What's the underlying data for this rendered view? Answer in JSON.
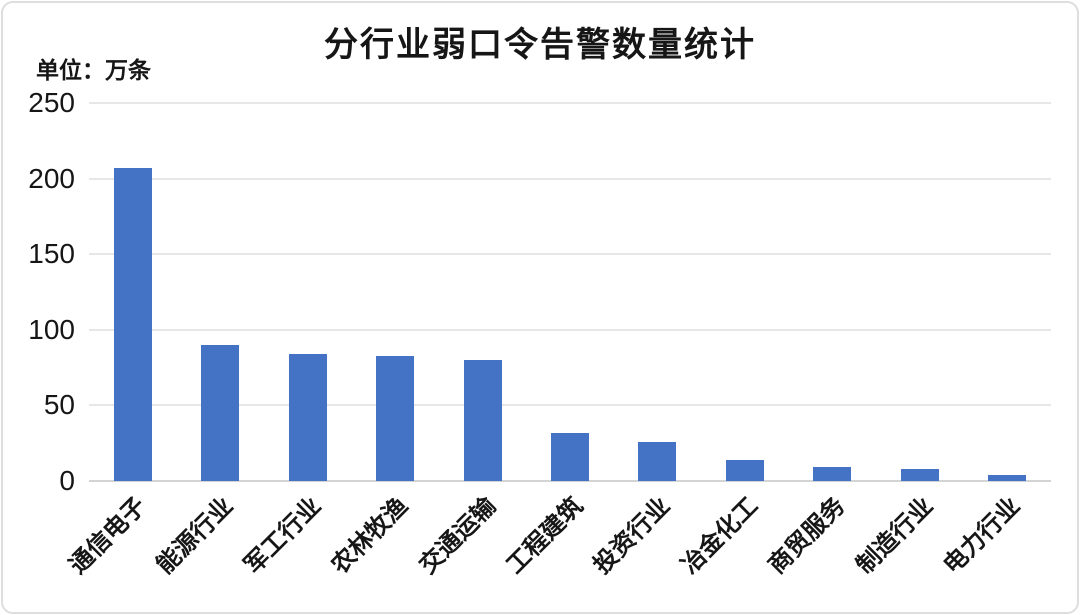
{
  "chart_data": {
    "type": "bar",
    "title": "分行业弱口令告警数量统计",
    "unit_label": "单位：万条",
    "categories": [
      "通信电子",
      "能源行业",
      "军工行业",
      "农林牧渔",
      "交通运输",
      "工程建筑",
      "投资行业",
      "冶金化工",
      "商贸服务",
      "制造行业",
      "电力行业"
    ],
    "values": [
      207,
      90,
      84,
      83,
      80,
      32,
      26,
      14,
      9,
      8,
      4
    ],
    "bar_color": "#4472C4",
    "xlabel": "",
    "ylabel": "",
    "ylim": [
      0,
      250
    ],
    "yticks": [
      0,
      50,
      100,
      150,
      200,
      250
    ],
    "grid": true,
    "legend": "none",
    "gridline_color": "#e7e7e7",
    "axis_line_color": "#d4d4d4"
  }
}
